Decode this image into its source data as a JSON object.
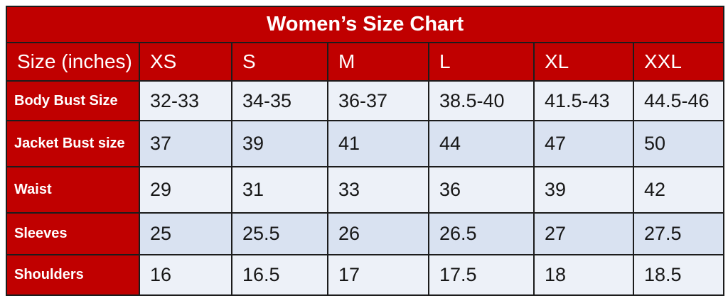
{
  "chart_data": {
    "type": "table",
    "title": "Women’s Size Chart",
    "columns": [
      "Size (inches)",
      "XS",
      "S",
      "M",
      "L",
      "XL",
      "XXL"
    ],
    "rows": [
      {
        "label": "Body Bust Size",
        "values": [
          "32-33",
          "34-35",
          "36-37",
          "38.5-40",
          "41.5-43",
          "44.5-46"
        ]
      },
      {
        "label": "Jacket Bust size",
        "values": [
          "37",
          "39",
          "41",
          "44",
          "47",
          "50"
        ]
      },
      {
        "label": "Waist",
        "values": [
          "29",
          "31",
          "33",
          "36",
          "39",
          "42"
        ]
      },
      {
        "label": "Sleeves",
        "values": [
          "25",
          "25.5",
          "26",
          "26.5",
          "27",
          "27.5"
        ]
      },
      {
        "label": "Shoulders",
        "values": [
          "16",
          "16.5",
          "17",
          "17.5",
          "18",
          "18.5"
        ]
      }
    ]
  },
  "colors": {
    "red": "#c00000",
    "row_light": "#edf1f8",
    "row_dark": "#d9e2f1",
    "border": "#1c1c1c",
    "header_text": "#ffffff",
    "data_text": "#171717",
    "page_background": "#ffffff"
  }
}
